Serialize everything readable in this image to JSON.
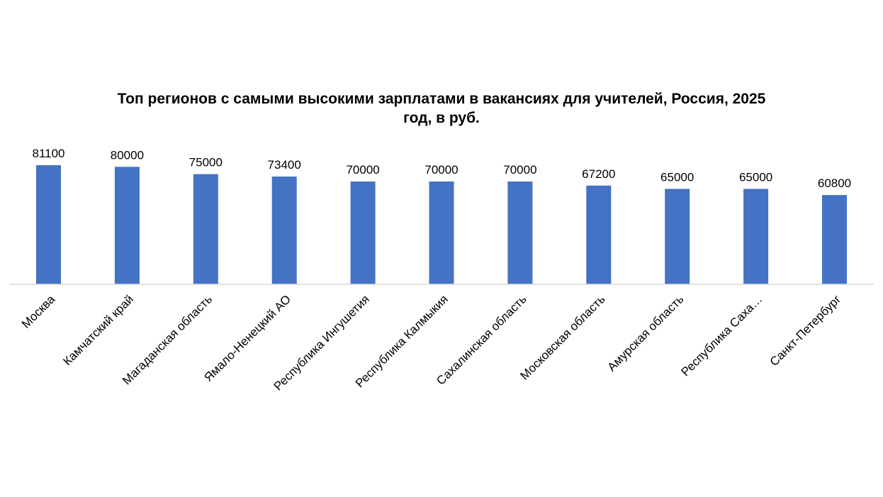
{
  "chart_data": {
    "type": "bar",
    "title_lines": [
      "Топ регионов с самыми высокими зарплатами в вакансиях для учителей, Россия, 2025",
      "год, в руб."
    ],
    "categories": [
      "Москва",
      "Камчатский край",
      "Магаданская область",
      "Ямало-Ненецкий АО",
      "Республика Ингушетия",
      "Республика Калмыкия",
      "Сахалинская область",
      "Московская область",
      "Амурская область",
      "Республика Саха…",
      "Санкт-Петербург"
    ],
    "values": [
      81100,
      80000,
      75000,
      73400,
      70000,
      70000,
      70000,
      67200,
      65000,
      65000,
      60800
    ],
    "data_labels": [
      "81100",
      "80000",
      "75000",
      "73400",
      "70000",
      "70000",
      "70000",
      "67200",
      "65000",
      "65000",
      "60800"
    ],
    "bar_color": "#4472C4",
    "axis_color": "#D9D9D9",
    "grid": false,
    "legend": "none"
  }
}
